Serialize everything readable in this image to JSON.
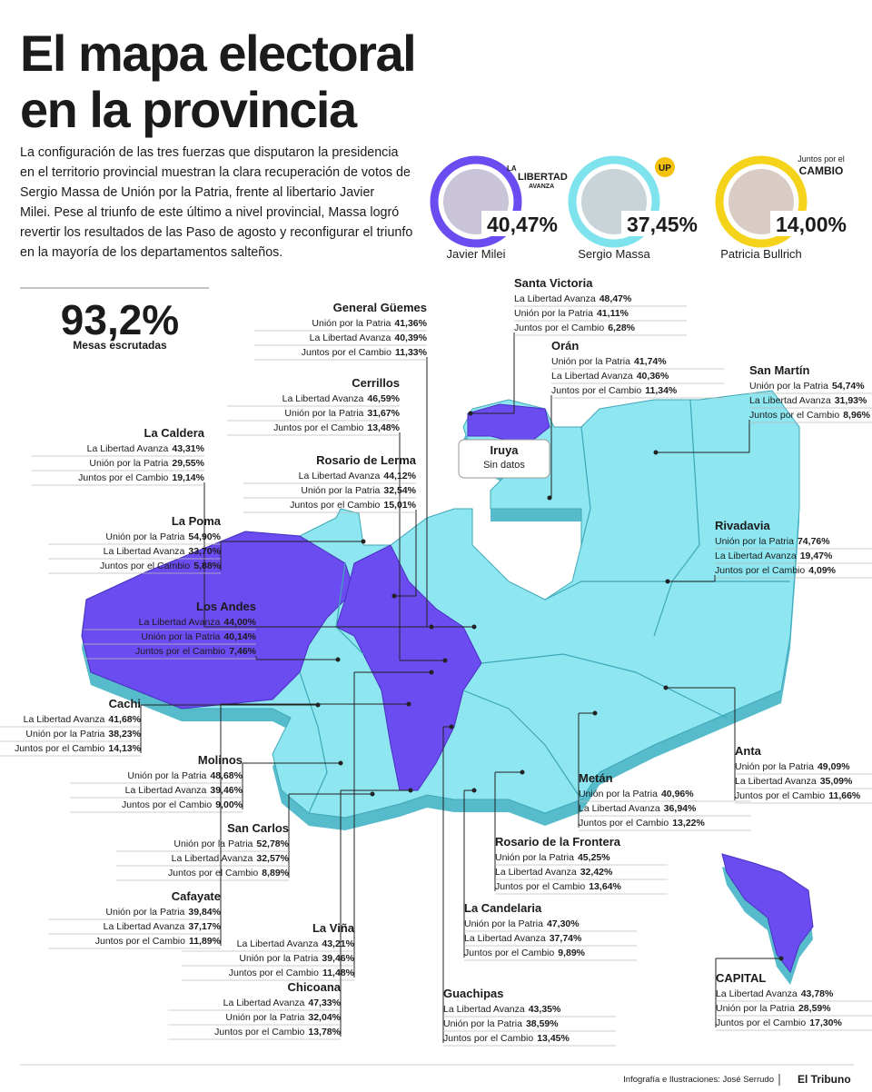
{
  "header": {
    "title": [
      "El mapa electoral",
      "en la provincia"
    ],
    "intro": [
      "La configuración de las tres fuerzas que disputaron la presidencia",
      "en el territorio provincial muestran la clara recuperación de votos de",
      "Sergio Massa de Unión por la Patria, frente al libertario Javier",
      "Milei. Pese al triunfo de este último a nivel provincial, Massa logró",
      "revertir los resultados de las Paso de agosto y reconfigurar el triunfo",
      "en la mayoría de los departamentos salteños."
    ]
  },
  "candidates": [
    {
      "name": "Javier Milei",
      "pct": "40,47%",
      "logo": [
        "LA",
        "LIBERTAD",
        "AVANZA"
      ]
    },
    {
      "name": "Sergio Massa",
      "pct": "37,45%",
      "logo": [
        "UP"
      ]
    },
    {
      "name": "Patricia Bullrich",
      "pct": "14,00%",
      "logo": [
        "Juntos por el",
        "CAMBIO"
      ]
    }
  ],
  "scrutiny": {
    "value": "93,2%",
    "label": "Mesas escrutadas"
  },
  "no_data": {
    "name": "Iruya",
    "label": "Sin datos"
  },
  "departments": [
    {
      "name": "Santa Victoria",
      "lines": [
        {
          "party": "La Libertad Avanza",
          "pct": "48,47%"
        },
        {
          "party": "Unión por la Patria",
          "pct": "41,11%"
        },
        {
          "party": "Juntos por el Cambio",
          "pct": "6,28%"
        }
      ]
    },
    {
      "name": "General Güemes",
      "lines": [
        {
          "party": "Unión por la Patria",
          "pct": "41,36%"
        },
        {
          "party": "La Libertad Avanza",
          "pct": "40,39%"
        },
        {
          "party": "Juntos por el Cambio",
          "pct": "11,33%"
        }
      ]
    },
    {
      "name": "Orán",
      "lines": [
        {
          "party": "Unión por la Patria",
          "pct": "41,74%"
        },
        {
          "party": "La Libertad Avanza",
          "pct": "40,36%"
        },
        {
          "party": "Juntos por el Cambio",
          "pct": "11,34%"
        }
      ]
    },
    {
      "name": "San Martín",
      "lines": [
        {
          "party": "Unión por la Patria",
          "pct": "54,74%"
        },
        {
          "party": "La Libertad Avanza",
          "pct": "31,93%"
        },
        {
          "party": "Juntos por el Cambio",
          "pct": "8,96%"
        }
      ]
    },
    {
      "name": "Cerrillos",
      "lines": [
        {
          "party": "La Libertad Avanza",
          "pct": "46,59%"
        },
        {
          "party": "Unión por la Patria",
          "pct": "31,67%"
        },
        {
          "party": "Juntos por el Cambio",
          "pct": "13,48%"
        }
      ]
    },
    {
      "name": "La Caldera",
      "lines": [
        {
          "party": "La Libertad Avanza",
          "pct": "43,31%"
        },
        {
          "party": "Unión por la Patria",
          "pct": "29,55%"
        },
        {
          "party": "Juntos por el Cambio",
          "pct": "19,14%"
        }
      ]
    },
    {
      "name": "Rosario de Lerma",
      "lines": [
        {
          "party": "La Libertad Avanza",
          "pct": "44,12%"
        },
        {
          "party": "Unión por la Patria",
          "pct": "32,54%"
        },
        {
          "party": "Juntos por el Cambio",
          "pct": "15,01%"
        }
      ]
    },
    {
      "name": "Rivadavia",
      "lines": [
        {
          "party": "Unión por la Patria",
          "pct": "74,76%"
        },
        {
          "party": "La Libertad Avanza",
          "pct": "19,47%"
        },
        {
          "party": "Juntos por el Cambio",
          "pct": "4,09%"
        }
      ]
    },
    {
      "name": "La Poma",
      "lines": [
        {
          "party": "Unión por la Patria",
          "pct": "54,90%"
        },
        {
          "party": "La Libertad Avanza",
          "pct": "33,70%"
        },
        {
          "party": "Juntos por el Cambio",
          "pct": "5,88%"
        }
      ]
    },
    {
      "name": "Los Andes",
      "lines": [
        {
          "party": "La Libertad Avanza",
          "pct": "44,00%"
        },
        {
          "party": "Unión por la Patria",
          "pct": "40,14%"
        },
        {
          "party": "Juntos por el Cambio",
          "pct": "7,46%"
        }
      ]
    },
    {
      "name": "Cachi",
      "lines": [
        {
          "party": "La Libertad Avanza",
          "pct": "41,68%"
        },
        {
          "party": "Unión por la Patria",
          "pct": "38,23%"
        },
        {
          "party": "Juntos por el Cambio",
          "pct": "14,13%"
        }
      ]
    },
    {
      "name": "Anta",
      "lines": [
        {
          "party": "Unión por la Patria",
          "pct": "49,09%"
        },
        {
          "party": "La Libertad Avanza",
          "pct": "35,09%"
        },
        {
          "party": "Juntos por el Cambio",
          "pct": "11,66%"
        }
      ]
    },
    {
      "name": "Molinos",
      "lines": [
        {
          "party": "Unión por la Patria",
          "pct": "48,68%"
        },
        {
          "party": "La Libertad Avanza",
          "pct": "39,46%"
        },
        {
          "party": "Juntos por el Cambio",
          "pct": "9,00%"
        }
      ]
    },
    {
      "name": "Metán",
      "lines": [
        {
          "party": "Unión por la Patria",
          "pct": "40,96%"
        },
        {
          "party": "La Libertad Avanza",
          "pct": "36,94%"
        },
        {
          "party": "Juntos por el Cambio",
          "pct": "13,22%"
        }
      ]
    },
    {
      "name": "San Carlos",
      "lines": [
        {
          "party": "Unión por la Patria",
          "pct": "52,78%"
        },
        {
          "party": "La Libertad Avanza",
          "pct": "32,57%"
        },
        {
          "party": "Juntos por el Cambio",
          "pct": "8,89%"
        }
      ]
    },
    {
      "name": "Rosario de la Frontera",
      "lines": [
        {
          "party": "Unión por la Patria",
          "pct": "45,25%"
        },
        {
          "party": "La Libertad Avanza",
          "pct": "32,42%"
        },
        {
          "party": "Juntos por el Cambio",
          "pct": "13,64%"
        }
      ]
    },
    {
      "name": "Cafayate",
      "lines": [
        {
          "party": "Unión por la Patria",
          "pct": "39,84%"
        },
        {
          "party": "La Libertad Avanza",
          "pct": "37,17%"
        },
        {
          "party": "Juntos por el Cambio",
          "pct": "11,89%"
        }
      ]
    },
    {
      "name": "La Candelaria",
      "lines": [
        {
          "party": "Unión por la Patria",
          "pct": "47,30%"
        },
        {
          "party": "La Libertad Avanza",
          "pct": "37,74%"
        },
        {
          "party": "Juntos por el Cambio",
          "pct": "9,89%"
        }
      ]
    },
    {
      "name": "La Viña",
      "lines": [
        {
          "party": "La Libertad Avanza",
          "pct": "43,21%"
        },
        {
          "party": "Unión por la Patria",
          "pct": "39,46%"
        },
        {
          "party": "Juntos por el Cambio",
          "pct": "11,48%"
        }
      ]
    },
    {
      "name": "CAPITAL",
      "lines": [
        {
          "party": "La Libertad Avanza",
          "pct": "43,78%"
        },
        {
          "party": "Unión por la Patria",
          "pct": "28,59%"
        },
        {
          "party": "Juntos por el Cambio",
          "pct": "17,30%"
        }
      ]
    },
    {
      "name": "Chicoana",
      "lines": [
        {
          "party": "La Libertad Avanza",
          "pct": "47,33%"
        },
        {
          "party": "Unión por la Patria",
          "pct": "32,04%"
        },
        {
          "party": "Juntos por el Cambio",
          "pct": "13,78%"
        }
      ]
    },
    {
      "name": "Guachipas",
      "lines": [
        {
          "party": "La Libertad Avanza",
          "pct": "43,35%"
        },
        {
          "party": "Unión por la Patria",
          "pct": "38,59%"
        },
        {
          "party": "Juntos por el Cambio",
          "pct": "13,45%"
        }
      ]
    }
  ],
  "footer": {
    "credit": "Infografía e Ilustraciones: José Serrudo",
    "brand": "El Tribuno"
  }
}
